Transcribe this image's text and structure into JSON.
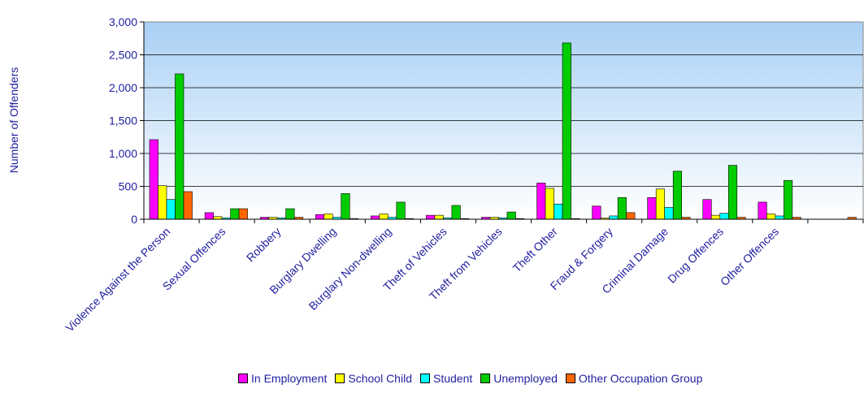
{
  "chart_data": {
    "type": "bar",
    "ylabel": "Number of Offenders",
    "ylim": [
      0,
      3000
    ],
    "yticks": [
      "0",
      "500",
      "1,000",
      "1,500",
      "2,000",
      "2,500",
      "3,000"
    ],
    "categories": [
      "Violence Against the Person",
      "Sexual Offences",
      "Robbery",
      "Burglary Dwelling",
      "Burglary Non-dwelling",
      "Theft of Vehicles",
      "Theft from Vehicles",
      "Theft Other",
      "Fraud & Forgery",
      "Criminal Damage",
      "Drug Offences",
      "Other Offences",
      ""
    ],
    "series": [
      {
        "name": "In Employment",
        "color": "#ff00ff",
        "values": [
          1210,
          100,
          30,
          70,
          50,
          60,
          30,
          550,
          200,
          330,
          300,
          260,
          0
        ]
      },
      {
        "name": "School Child",
        "color": "#ffff00",
        "values": [
          510,
          40,
          30,
          80,
          80,
          60,
          30,
          470,
          20,
          460,
          60,
          80,
          0
        ]
      },
      {
        "name": "Student",
        "color": "#00ffff",
        "values": [
          300,
          20,
          20,
          30,
          30,
          20,
          20,
          230,
          50,
          180,
          90,
          50,
          0
        ]
      },
      {
        "name": "Unemployed",
        "color": "#00cc00",
        "values": [
          2210,
          160,
          160,
          390,
          260,
          210,
          110,
          2680,
          330,
          730,
          820,
          590,
          0
        ]
      },
      {
        "name": "Other Occupation Group",
        "color": "#ff6600",
        "values": [
          420,
          160,
          30,
          10,
          10,
          10,
          10,
          10,
          100,
          30,
          30,
          30,
          30
        ]
      }
    ],
    "grid": true,
    "legend_position": "bottom"
  }
}
